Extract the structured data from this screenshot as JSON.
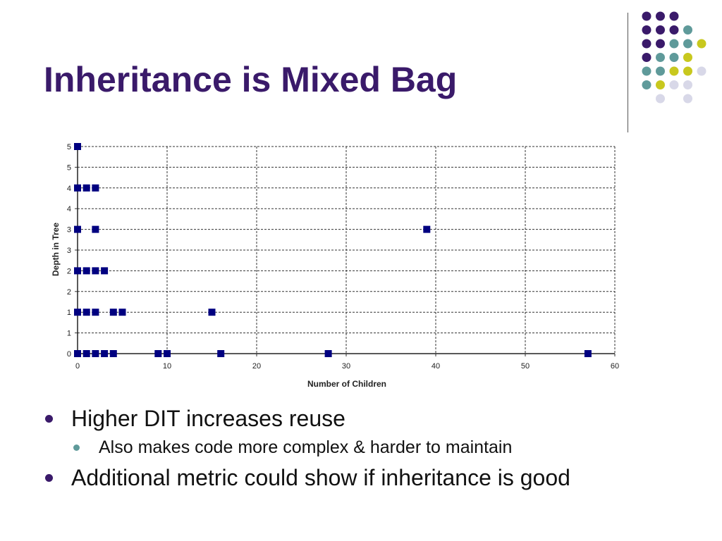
{
  "title": "Inheritance is Mixed Bag",
  "bullets": [
    {
      "text": "Higher DIT increases reuse",
      "sub": [
        "Also makes code more complex & harder to maintain"
      ]
    },
    {
      "text": "Additional metric could show if inheritance is good",
      "sub": []
    }
  ],
  "colors": {
    "title": "#3a1a6a",
    "bullet_level1": "#3a1a6a",
    "bullet_level2": "#5f9a9a",
    "marker": "#000080",
    "decor": [
      "#3a1a6a",
      "#5f9a9a",
      "#c8c81e",
      "#d8d8e8"
    ]
  },
  "chart_data": {
    "type": "scatter",
    "title": "",
    "xlabel": "Number of Children",
    "ylabel": "Depth in Tree",
    "xlim": [
      0,
      60
    ],
    "ylim": [
      0,
      5
    ],
    "x_ticks": [
      0,
      10,
      20,
      30,
      40,
      50,
      60
    ],
    "y_tick_labels": [
      "0",
      "1",
      "1",
      "2",
      "2",
      "3",
      "3",
      "4",
      "4",
      "5",
      "5"
    ],
    "grid": true,
    "legend": false,
    "series": [
      {
        "points": [
          [
            0,
            5
          ],
          [
            0,
            4
          ],
          [
            1,
            4
          ],
          [
            2,
            4
          ],
          [
            0,
            3
          ],
          [
            2,
            3
          ],
          [
            39,
            3
          ],
          [
            0,
            2
          ],
          [
            1,
            2
          ],
          [
            2,
            2
          ],
          [
            3,
            2
          ],
          [
            0,
            1
          ],
          [
            1,
            1
          ],
          [
            2,
            1
          ],
          [
            4,
            1
          ],
          [
            5,
            1
          ],
          [
            15,
            1
          ],
          [
            0,
            0
          ],
          [
            1,
            0
          ],
          [
            2,
            0
          ],
          [
            3,
            0
          ],
          [
            4,
            0
          ],
          [
            9,
            0
          ],
          [
            10,
            0
          ],
          [
            16,
            0
          ],
          [
            28,
            0
          ],
          [
            57,
            0
          ]
        ]
      }
    ]
  }
}
